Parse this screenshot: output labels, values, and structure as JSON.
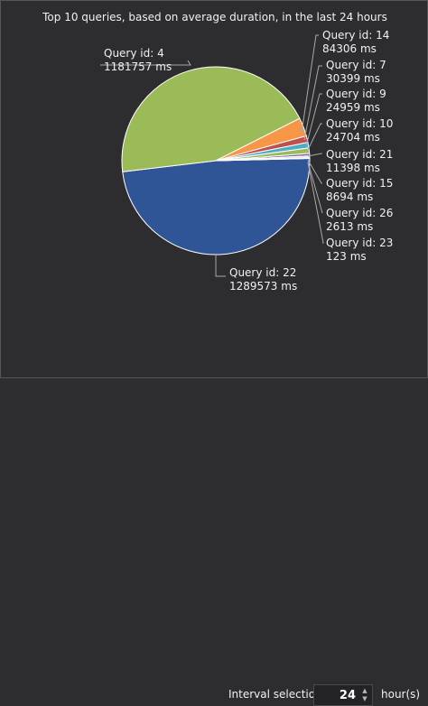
{
  "chart_data": {
    "type": "pie",
    "title": "Top 10 queries, based on average duration, in the last 24 hours",
    "slices": [
      {
        "label_1": "Query id: 22",
        "label_2": "1289573 ms",
        "value": 1289573,
        "color": "#2f5597"
      },
      {
        "label_1": "Query id: 4",
        "label_2": "1181757 ms",
        "value": 1181757,
        "color": "#9bbb59"
      },
      {
        "label_1": "Query id: 14",
        "label_2": "84306 ms",
        "value": 84306,
        "color": "#f79646"
      },
      {
        "label_1": "Query id: 7",
        "label_2": "30399 ms",
        "value": 30399,
        "color": "#c0504d"
      },
      {
        "label_1": "Query id: 9",
        "label_2": "24959 ms",
        "value": 24959,
        "color": "#4bacc6"
      },
      {
        "label_1": "Query id: 10",
        "label_2": "24704 ms",
        "value": 24704,
        "color": "#9bbb59"
      },
      {
        "label_1": "Query id: 21",
        "label_2": "11398 ms",
        "value": 11398,
        "color": "#8064a2"
      },
      {
        "label_1": "Query id: 15",
        "label_2": "8694 ms",
        "value": 8694,
        "color": "#d9d9d9"
      },
      {
        "label_1": "Query id: 26",
        "label_2": "2613 ms",
        "value": 2613,
        "color": "#f2dcdb"
      },
      {
        "label_1": "Query id: 23",
        "label_2": "123 ms",
        "value": 123,
        "color": "#4f81bd"
      }
    ]
  },
  "interval": {
    "label": "Interval selection",
    "value": "24",
    "unit": "hour(s)",
    "up_icon": "chevron-up-icon",
    "down_icon": "chevron-down-icon"
  }
}
